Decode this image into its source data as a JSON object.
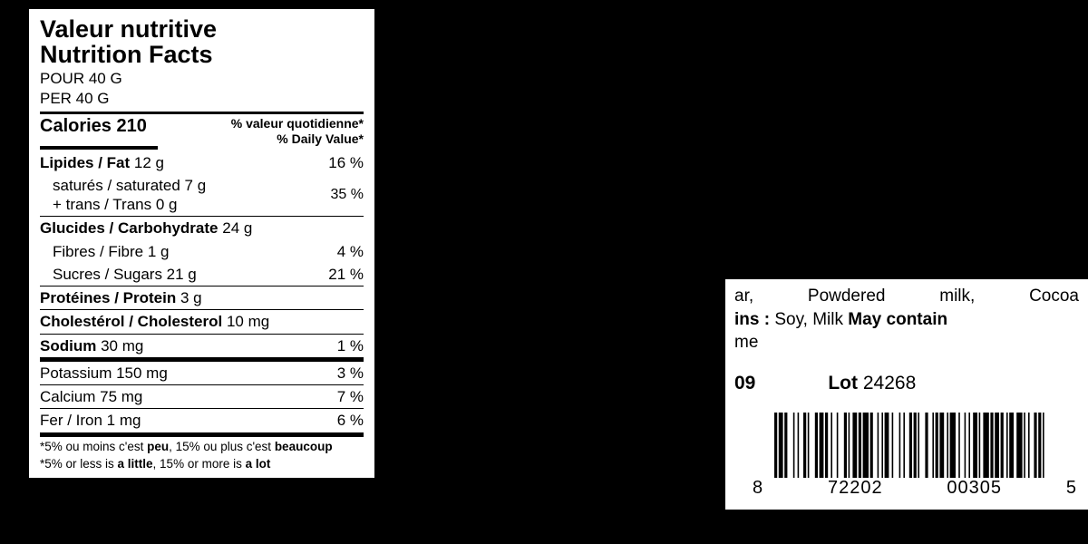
{
  "nutrition": {
    "title_fr": "Valeur nutritive",
    "title_en": "Nutrition Facts",
    "serving_fr": "POUR 40 G",
    "serving_en": "PER 40 G",
    "calories_label": "Calories 210",
    "dv_header_fr": "% valeur quotidienne*",
    "dv_header_en": "% Daily Value*",
    "fat": {
      "label": "Lipides / Fat",
      "amount": "12 g",
      "pct": "16 %"
    },
    "sat": {
      "line1": "saturés / saturated 7 g",
      "line2": "+ trans / Trans 0 g",
      "pct": "35 %"
    },
    "carb": {
      "label": "Glucides / Carbohydrate",
      "amount": "24 g"
    },
    "fibre": {
      "label": "Fibres / Fibre 1 g",
      "pct": "4 %"
    },
    "sugars": {
      "label": "Sucres / Sugars 21 g",
      "pct": "21 %"
    },
    "protein": {
      "label": "Protéines / Protein",
      "amount": "3 g"
    },
    "cholesterol": {
      "label": "Cholestérol / Cholesterol",
      "amount": "10 mg"
    },
    "sodium": {
      "label": "Sodium",
      "amount": "30 mg",
      "pct": "1 %"
    },
    "potassium": {
      "label": "Potassium 150 mg",
      "pct": "3 %"
    },
    "calcium": {
      "label": "Calcium 75 mg",
      "pct": "7 %"
    },
    "iron": {
      "label": "Fer / Iron 1 mg",
      "pct": "6 %"
    },
    "footnote_fr_a": "*5% ou moins c'est ",
    "footnote_fr_b": "peu",
    "footnote_fr_c": ", 15% ou plus c'est ",
    "footnote_fr_d": "beaucoup",
    "footnote_en_a": "*5% or less is ",
    "footnote_en_b": "a little",
    "footnote_en_c": ", 15% or more is ",
    "footnote_en_d": "a lot"
  },
  "right": {
    "ing_frag1": "ar, Powdered milk, Cocoa",
    "ing_frag2a": "ins : ",
    "ing_frag2b": "Soy, Milk ",
    "ing_frag2c": "May contain",
    "ing_frag3": "me",
    "code_frag": "09",
    "lot_label": "Lot",
    "lot_value": "24268",
    "barcode_groups": [
      "8",
      "72202",
      "00305",
      "5"
    ]
  },
  "colors": {
    "bg": "#000000",
    "panel": "#ffffff",
    "text": "#000000"
  }
}
